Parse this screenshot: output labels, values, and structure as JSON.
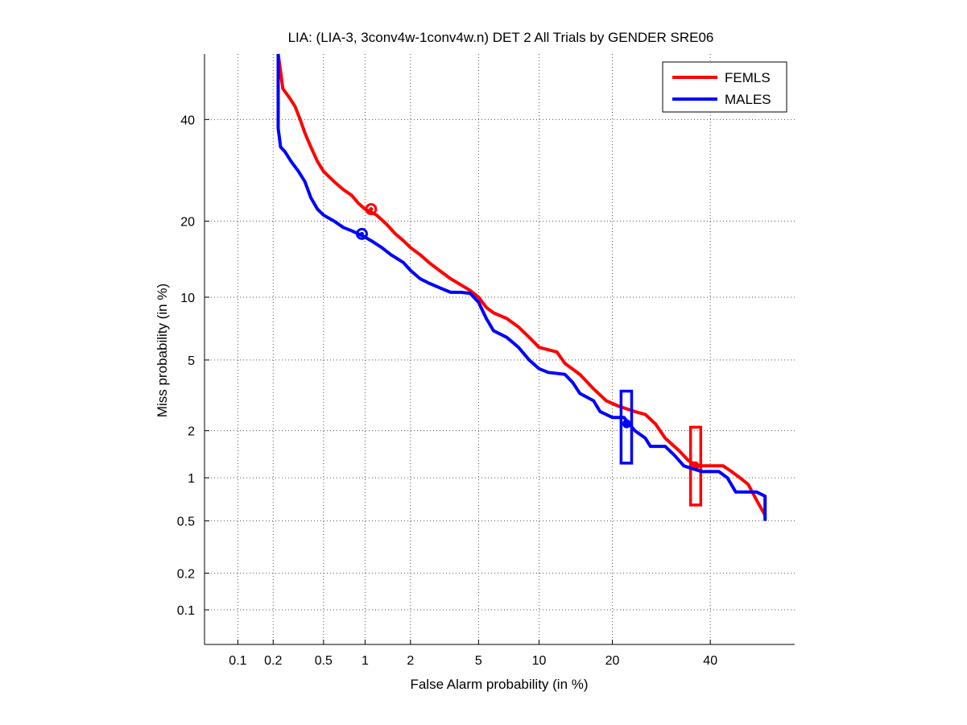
{
  "chart_data": {
    "type": "line",
    "title": "LIA: (LIA-3, 3conv4w-1conv4w.n) DET 2 All Trials by GENDER SRE06",
    "xlabel": "False Alarm probability (in %)",
    "ylabel": "Miss probability (in %)",
    "xscale": "probit",
    "yscale": "probit",
    "xlim": [
      0.05,
      60
    ],
    "ylim": [
      0.05,
      55
    ],
    "grid": true,
    "legend_position": "top-right",
    "xticks": [
      0.1,
      0.2,
      0.5,
      1,
      2,
      5,
      10,
      20,
      40
    ],
    "xtick_labels": [
      "0.1",
      "0.2",
      "0.5",
      "1",
      "2",
      "5",
      "10",
      "20",
      "40"
    ],
    "yticks": [
      0.1,
      0.2,
      0.5,
      1,
      2,
      5,
      10,
      20,
      40
    ],
    "ytick_labels": [
      "0.1",
      "0.2",
      "0.5",
      "1",
      "2",
      "5",
      "10",
      "20",
      "40"
    ],
    "series": [
      {
        "name": "FEMLS",
        "color": "#ff0000",
        "points": [
          [
            0.22,
            55
          ],
          [
            0.24,
            47
          ],
          [
            0.27,
            45
          ],
          [
            0.3,
            43
          ],
          [
            0.33,
            40
          ],
          [
            0.36,
            37
          ],
          [
            0.4,
            34
          ],
          [
            0.45,
            31
          ],
          [
            0.5,
            29
          ],
          [
            0.6,
            27
          ],
          [
            0.7,
            25.5
          ],
          [
            0.8,
            24.5
          ],
          [
            0.9,
            23
          ],
          [
            1.0,
            22
          ],
          [
            1.1,
            21.5
          ],
          [
            1.2,
            21
          ],
          [
            1.4,
            19.5
          ],
          [
            1.6,
            18
          ],
          [
            1.8,
            17
          ],
          [
            2.0,
            16
          ],
          [
            2.3,
            15
          ],
          [
            2.6,
            14
          ],
          [
            3.0,
            13
          ],
          [
            3.5,
            12
          ],
          [
            4.0,
            11.3
          ],
          [
            4.5,
            10.7
          ],
          [
            5.0,
            10
          ],
          [
            5.5,
            9
          ],
          [
            6.0,
            8.5
          ],
          [
            7.0,
            8
          ],
          [
            8.0,
            7.3
          ],
          [
            9.0,
            6.5
          ],
          [
            10.0,
            5.8
          ],
          [
            12.0,
            5.5
          ],
          [
            13.0,
            4.8
          ],
          [
            15.0,
            4.2
          ],
          [
            17.0,
            3.5
          ],
          [
            19.0,
            3.0
          ],
          [
            21.0,
            2.8
          ],
          [
            24.0,
            2.6
          ],
          [
            26.0,
            2.5
          ],
          [
            28.0,
            2.2
          ],
          [
            30.0,
            1.8
          ],
          [
            33.0,
            1.5
          ],
          [
            35.0,
            1.3
          ],
          [
            37.0,
            1.2
          ],
          [
            43.0,
            1.2
          ],
          [
            45.0,
            1.1
          ],
          [
            47.0,
            1.0
          ],
          [
            49.0,
            0.9
          ],
          [
            51.0,
            0.7
          ],
          [
            53.0,
            0.55
          ]
        ],
        "operating_point": [
          1.1,
          22
        ],
        "min_cost_point": [
          36.5,
          1.2
        ],
        "confidence_box": {
          "x": [
            35.5,
            37.8
          ],
          "y": [
            0.65,
            2.1
          ]
        }
      },
      {
        "name": "MALES",
        "color": "#0000ff",
        "points": [
          [
            0.22,
            55
          ],
          [
            0.22,
            38
          ],
          [
            0.23,
            34
          ],
          [
            0.25,
            33
          ],
          [
            0.28,
            31
          ],
          [
            0.32,
            29
          ],
          [
            0.36,
            27
          ],
          [
            0.4,
            24
          ],
          [
            0.45,
            22
          ],
          [
            0.5,
            21
          ],
          [
            0.6,
            20
          ],
          [
            0.7,
            19
          ],
          [
            0.8,
            18.5
          ],
          [
            0.9,
            18
          ],
          [
            1.0,
            17.5
          ],
          [
            1.1,
            17
          ],
          [
            1.3,
            16
          ],
          [
            1.5,
            15
          ],
          [
            1.8,
            14
          ],
          [
            2.0,
            13
          ],
          [
            2.3,
            12
          ],
          [
            2.6,
            11.5
          ],
          [
            3.0,
            11
          ],
          [
            3.5,
            10.5
          ],
          [
            4.0,
            10.5
          ],
          [
            4.5,
            10.4
          ],
          [
            5.0,
            9.5
          ],
          [
            5.5,
            8
          ],
          [
            6.0,
            7
          ],
          [
            7.0,
            6.5
          ],
          [
            8.0,
            5.8
          ],
          [
            9.0,
            5.0
          ],
          [
            10.0,
            4.5
          ],
          [
            11.0,
            4.3
          ],
          [
            13.0,
            4.2
          ],
          [
            14.0,
            3.8
          ],
          [
            15.0,
            3.3
          ],
          [
            17.0,
            3.0
          ],
          [
            18.0,
            2.6
          ],
          [
            20.0,
            2.4
          ],
          [
            22.0,
            2.4
          ],
          [
            24.0,
            2.0
          ],
          [
            26.0,
            1.8
          ],
          [
            27.0,
            1.6
          ],
          [
            30.0,
            1.6
          ],
          [
            32.0,
            1.4
          ],
          [
            34.0,
            1.2
          ],
          [
            38.0,
            1.1
          ],
          [
            42.0,
            1.1
          ],
          [
            44.0,
            1.0
          ],
          [
            46.0,
            0.8
          ],
          [
            51.0,
            0.8
          ],
          [
            53.0,
            0.75
          ],
          [
            53.0,
            0.5
          ]
        ],
        "operating_point": [
          0.95,
          18
        ],
        "min_cost_point": [
          22.5,
          2.2
        ],
        "confidence_box": {
          "x": [
            21.5,
            23.4
          ],
          "y": [
            1.25,
            3.4
          ]
        }
      }
    ]
  }
}
